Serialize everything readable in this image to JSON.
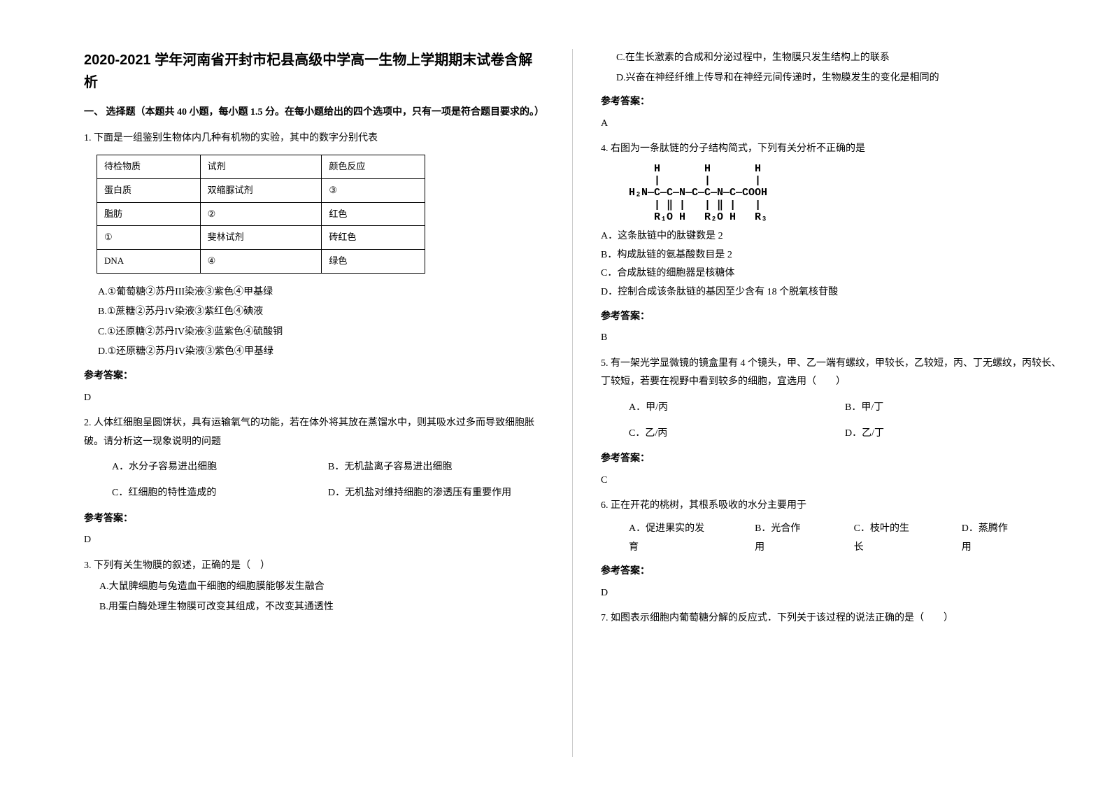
{
  "title": "2020-2021 学年河南省开封市杞县高级中学高一生物上学期期末试卷含解析",
  "section1": "一、 选择题（本题共 40 小题，每小题 1.5 分。在每小题给出的四个选项中，只有一项是符合题目要求的。）",
  "q1": {
    "text": "1. 下面是一组鉴别生物体内几种有机物的实验，其中的数字分别代表",
    "table": {
      "rows": [
        [
          "待检物质",
          "试剂",
          "颜色反应"
        ],
        [
          "蛋白质",
          "双缩脲试剂",
          "③"
        ],
        [
          "脂肪",
          "②",
          "红色"
        ],
        [
          "①",
          "斐林试剂",
          "砖红色"
        ],
        [
          "DNA",
          "④",
          "绿色"
        ]
      ]
    },
    "optA": "A.①葡萄糖②苏丹III染液③紫色④甲基绿",
    "optB": "B.①蔗糖②苏丹IV染液③紫红色④碘液",
    "optC": "C.①还原糖②苏丹IV染液③蓝紫色④硫酸铜",
    "optD": "D.①还原糖②苏丹IV染液③紫色④甲基绿",
    "answerLabel": "参考答案：",
    "answer": "D"
  },
  "q2": {
    "text": "2. 人体红细胞呈圆饼状，具有运输氧气的功能，若在体外将其放在蒸馏水中，则其吸水过多而导致细胞胀破。请分析这一现象说明的问题",
    "optA": "A．水分子容易进出细胞",
    "optB": "B．无机盐离子容易进出细胞",
    "optC": "C．红细胞的特性造成的",
    "optD": "D．无机盐对维持细胞的渗透压有重要作用",
    "answerLabel": "参考答案：",
    "answer": "D"
  },
  "q3": {
    "text": "3. 下列有关生物膜的叙述，正确的是（　）",
    "optA": "A.大鼠脾细胞与兔造血干细胞的细胞膜能够发生融合",
    "optB": "B.用蛋白酶处理生物膜可改变其组成，不改变其通透性",
    "optC": "C.在生长激素的合成和分泌过程中，生物膜只发生结构上的联系",
    "optD": "D.兴奋在神经纤维上传导和在神经元间传递时，生物膜发生的变化是相同的",
    "answerLabel": "参考答案：",
    "answer": "A"
  },
  "q4": {
    "text": "4. 右图为一条肽链的分子结构简式，下列有关分析不正确的是",
    "optA": "A．这条肽链中的肽键数是 2",
    "optB": "B．构成肽链的氨基酸数目是 2",
    "optC": "C．合成肽链的细胞器是核糖体",
    "optD": "D．控制合成该条肽链的基因至少含有 18 个脱氧核苷酸",
    "answerLabel": "参考答案：",
    "answer": "B"
  },
  "q5": {
    "text": "5. 有一架光学显微镜的镜盒里有 4 个镜头，甲、乙一端有螺纹，甲较长，乙较短，丙、丁无螺纹，丙较长、丁较短，若要在视野中看到较多的细胞，宜选用（　　）",
    "optA": "A．甲/丙",
    "optB": "B．甲/丁",
    "optC": "C．乙/丙",
    "optD": "D．乙/丁",
    "answerLabel": "参考答案：",
    "answer": "C"
  },
  "q6": {
    "text": "6. 正在开花的桃树，其根系吸收的水分主要用于",
    "optA": "A．促进果实的发育",
    "optB": "B．光合作用",
    "optC": "C．枝叶的生长",
    "optD": "D．蒸腾作用",
    "answerLabel": "参考答案：",
    "answer": "D"
  },
  "q7": {
    "text": "7. 如图表示细胞内葡萄糖分解的反应式．下列关于该过程的说法正确的是（　　）"
  },
  "peptide": {
    "l1": "    H       H       H",
    "l2": "    |       |       |",
    "l3": "H₂N—C—C—N—C—C—N—C—COOH",
    "l4": "    | ‖ |   | ‖ |   |",
    "l5": "    R₁O H   R₂O H   R₃"
  }
}
